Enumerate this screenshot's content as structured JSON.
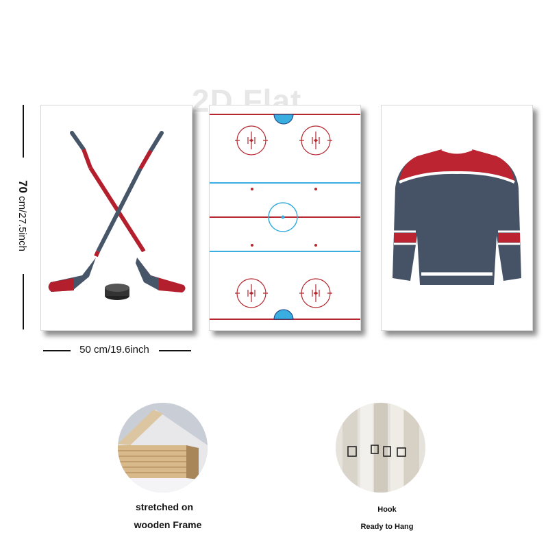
{
  "watermark": "2D Flat",
  "dimensions": {
    "height_label_big": "70",
    "height_label_rest": " cm/27.5inch",
    "width_label": "50 cm/19.6inch"
  },
  "panels": [
    {
      "subject": "crossed-hockey-sticks-and-puck"
    },
    {
      "subject": "hockey-rink"
    },
    {
      "subject": "hockey-jersey"
    }
  ],
  "features": [
    {
      "caption_line1": "stretched on",
      "caption_line2": "wooden Frame"
    },
    {
      "caption_line1": "Hook",
      "caption_line2": "Ready to Hang"
    }
  ],
  "colors": {
    "stick_shaft": "#475569",
    "stick_red": "#b41f2e",
    "puck": "#333333",
    "rink_red": "#b5262e",
    "rink_blue": "#3aaee0",
    "jersey_navy": "#465366",
    "jersey_red": "#bb2430"
  }
}
